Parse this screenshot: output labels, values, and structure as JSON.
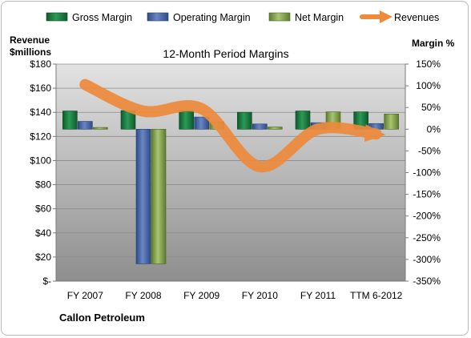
{
  "chart_data": {
    "type": "bar",
    "title": "12-Month Period Margins",
    "company": "Callon Petroleum",
    "left_axis": {
      "label_line1": "Revenue",
      "label_line2": "$millions",
      "range": [
        0,
        180
      ],
      "ticks": [
        "$180",
        "$160",
        "$140",
        "$120",
        "$100",
        "$80",
        "$60",
        "$40",
        "$20",
        "$-"
      ]
    },
    "right_axis": {
      "label": "Margin %",
      "range": [
        -350,
        150
      ],
      "ticks": [
        "150%",
        "100%",
        "50%",
        "0%",
        "-50%",
        "-100%",
        "-150%",
        "-200%",
        "-250%",
        "-300%",
        "-350%"
      ]
    },
    "categories": [
      "FY 2007",
      "FY 2008",
      "FY 2009",
      "FY 2010",
      "FY 2011",
      "TTM 6-2012"
    ],
    "series": [
      {
        "name": "Gross Margin",
        "type": "bar",
        "axis": "right",
        "color": "#1e7d45",
        "values": [
          42,
          43,
          43,
          39,
          42,
          40
        ]
      },
      {
        "name": "Operating Margin",
        "type": "bar",
        "axis": "right",
        "color": "#4a6aaa",
        "values": [
          18,
          -310,
          28,
          12,
          15,
          13
        ]
      },
      {
        "name": "Net Margin",
        "type": "bar",
        "axis": "right",
        "color": "#8aa653",
        "values": [
          4,
          -310,
          17,
          5,
          40,
          35
        ]
      },
      {
        "name": "Revenues",
        "type": "line",
        "axis": "left",
        "color": "#ee8a3c",
        "values": [
          163,
          141,
          143,
          95,
          126,
          122
        ]
      }
    ],
    "legend_position": "top",
    "grid": true
  }
}
